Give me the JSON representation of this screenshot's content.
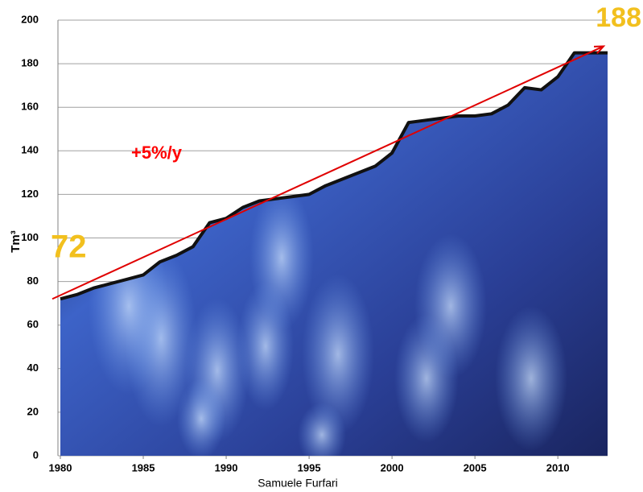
{
  "chart_data": {
    "type": "area",
    "y_label": "Tm³",
    "source": "Samuele Furfari",
    "x": [
      1980,
      1981,
      1982,
      1983,
      1984,
      1985,
      1986,
      1987,
      1988,
      1989,
      1990,
      1991,
      1992,
      1993,
      1994,
      1995,
      1996,
      1997,
      1998,
      1999,
      2000,
      2001,
      2002,
      2003,
      2004,
      2005,
      2006,
      2007,
      2008,
      2009,
      2010,
      2011,
      2012,
      2013
    ],
    "values": [
      72,
      74,
      77,
      79,
      81,
      83,
      89,
      92,
      96,
      107,
      109,
      114,
      117,
      118,
      119,
      120,
      124,
      127,
      130,
      133,
      139,
      153,
      154,
      155,
      156,
      156,
      157,
      161,
      169,
      168,
      174,
      185,
      185,
      185
    ],
    "color": "#1b2a6b",
    "trend": {
      "label": "+5%/y",
      "x": [
        1980,
        2013
      ],
      "values": [
        72,
        188
      ],
      "value_labels": [
        "72",
        "188"
      ],
      "color": "#e00000"
    },
    "xlim": [
      1980,
      2013
    ],
    "xticks": [
      1980,
      1985,
      1990,
      1995,
      2000,
      2005,
      2010
    ],
    "ylim": [
      0,
      200
    ],
    "yticks": [
      0,
      20,
      40,
      60,
      80,
      100,
      120,
      140,
      160,
      180,
      200
    ],
    "grid": true
  }
}
